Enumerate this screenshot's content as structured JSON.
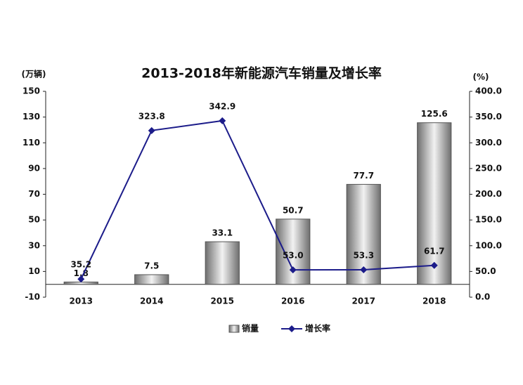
{
  "chart_data": {
    "type": "bar",
    "title": "2013-2018年新能源汽车销量及增长率",
    "y_label": "(万辆)",
    "y2_label": "(%)",
    "categories": [
      "2013",
      "2014",
      "2015",
      "2016",
      "2017",
      "2018"
    ],
    "series": [
      {
        "name": "销量",
        "type": "bar",
        "color": "#8c8c8c",
        "values": [
          1.8,
          7.5,
          33.1,
          50.7,
          77.7,
          125.6
        ]
      },
      {
        "name": "增长率",
        "type": "line",
        "axis": "y2",
        "color": "#1c1c8a",
        "values": [
          35.2,
          323.8,
          342.9,
          53.0,
          53.3,
          61.7
        ],
        "value_labels": [
          "35.2",
          "323.8",
          "342.9",
          "53.0",
          "53.3",
          "61.7"
        ]
      }
    ],
    "ylim": [
      -10,
      150
    ],
    "yticks": [
      -10,
      10,
      30,
      50,
      70,
      90,
      110,
      130,
      150
    ],
    "y2lim": [
      0,
      400
    ],
    "y2ticks": [
      {
        "value": 0,
        "label": "0.0"
      },
      {
        "value": 50,
        "label": "50.0"
      },
      {
        "value": 100,
        "label": "100.0"
      },
      {
        "value": 150,
        "label": "150.0"
      },
      {
        "value": 200,
        "label": "200.0"
      },
      {
        "value": 250,
        "label": "250.0"
      },
      {
        "value": 300,
        "label": "300.0"
      },
      {
        "value": 350,
        "label": "350.0"
      },
      {
        "value": 400,
        "label": "400.0"
      }
    ],
    "legend": "bottom"
  }
}
